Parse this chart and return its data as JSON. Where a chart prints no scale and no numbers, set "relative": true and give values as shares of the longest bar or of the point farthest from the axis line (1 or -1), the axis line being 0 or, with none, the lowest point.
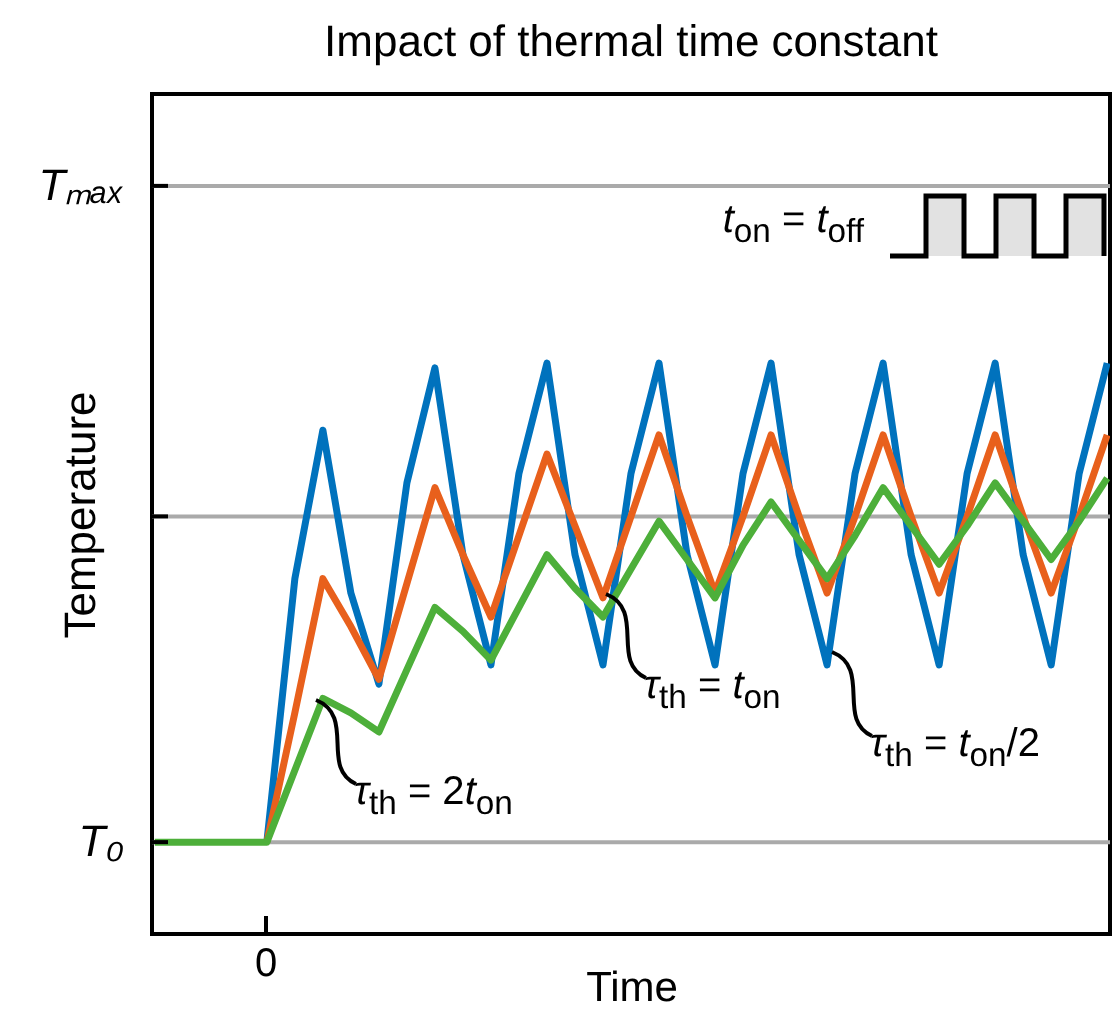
{
  "chart_data": {
    "type": "line",
    "title": "Impact of thermal time constant",
    "xlabel": "Time",
    "ylabel": "Temperature",
    "relative": true,
    "categories": [
      null,
      null,
      null,
      null,
      null,
      null,
      null,
      null,
      null,
      null,
      null,
      null,
      null,
      null,
      null,
      null,
      null,
      null,
      null,
      null,
      null,
      null,
      null,
      null,
      null,
      null,
      null,
      null,
      null,
      null,
      null,
      null,
      null,
      null,
      null
    ],
    "line_style": "solid",
    "ref_lines": [
      {
        "axis": "y",
        "value": 0,
        "label": "T₀",
        "color": "#aaaaaa"
      },
      {
        "axis": "y",
        "value": 0.68,
        "label": null,
        "color": "#aaaaaa"
      },
      {
        "axis": "y",
        "value": 1.37,
        "label": "Tₘₐₓ",
        "color": "#aaaaaa"
      }
    ],
    "series": [
      {
        "color": "#0072bd",
        "values": [
          null,
          null,
          null,
          null,
          0,
          0.55,
          0.86,
          0.52,
          0.33,
          0.75,
          0.99,
          0.6,
          0.37,
          0.77,
          1,
          0.6,
          0.37,
          0.77,
          1,
          0.6,
          0.37,
          0.77,
          1,
          0.6,
          0.37,
          0.77,
          1,
          0.6,
          0.37,
          0.77,
          1,
          0.6,
          0.37,
          0.77,
          1
        ]
      },
      {
        "color": "#e8601c",
        "values": [
          null,
          null,
          null,
          null,
          0,
          0.27,
          0.55,
          0.45,
          0.34,
          0.54,
          0.74,
          0.6,
          0.47,
          0.64,
          0.81,
          0.66,
          0.51,
          0.68,
          0.85,
          0.68,
          0.52,
          0.68,
          0.85,
          0.68,
          0.52,
          0.68,
          0.85,
          0.68,
          0.52,
          0.68,
          0.85,
          0.68,
          0.52,
          0.68,
          0.85
        ]
      },
      {
        "color": "#4daf3a",
        "values": [
          0,
          0,
          0,
          0,
          0,
          0.15,
          0.3,
          0.27,
          0.23,
          0.36,
          0.49,
          0.44,
          0.38,
          0.49,
          0.6,
          0.53,
          0.47,
          0.57,
          0.67,
          0.59,
          0.51,
          0.62,
          0.71,
          0.63,
          0.55,
          0.64,
          0.74,
          0.66,
          0.58,
          0.66,
          0.75,
          0.67,
          0.59,
          0.67,
          0.76
        ]
      }
    ],
    "annotations": [
      "t$_{on}$ = t$_{off}$",
      "τ$_{th}$ = 2t$_{on}$",
      "τ$_{th}$ = t$_{on}$",
      "τ$_{th}$ = t$_{on}$/2",
      "0"
    ]
  }
}
